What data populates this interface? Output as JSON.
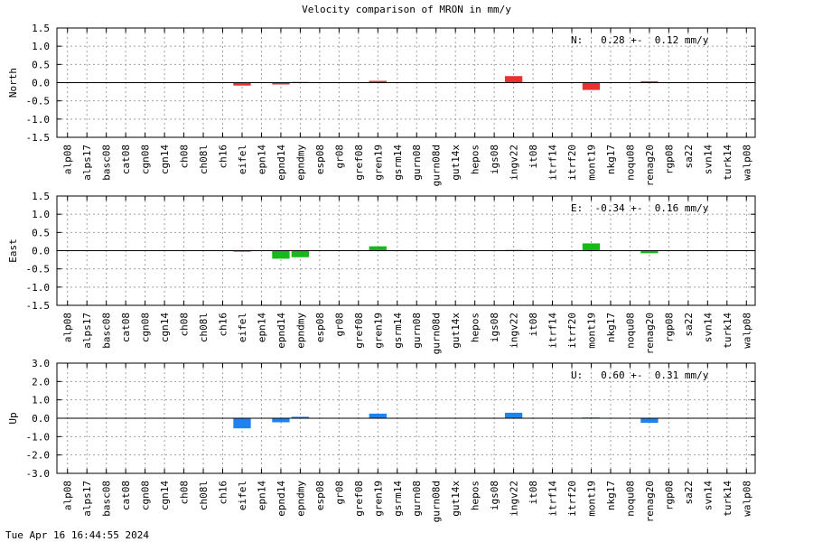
{
  "title": "Velocity comparison of MRON in mm/y",
  "footer": "Tue Apr 16 16:44:55 2024",
  "colors": {
    "north": "#e83232",
    "east": "#18b818",
    "up": "#1e82f0",
    "grid": "#a0a0a0",
    "axis": "#000000"
  },
  "chart_data": [
    {
      "type": "bar",
      "ylabel": "North",
      "ylim": [
        -1.5,
        1.5
      ],
      "yticks": [
        1.5,
        1.0,
        0.5,
        0.0,
        -0.5,
        -1.0,
        -1.5
      ],
      "ytick_labels": [
        "1.5",
        "1.0",
        "0.5",
        "0.0",
        "-0.5",
        "-1.0",
        "-1.5"
      ],
      "annotation": "N:   0.28 +-  0.12 mm/y",
      "color": "#e83232",
      "grid": true,
      "categories": [
        "alp08",
        "alps17",
        "basc08",
        "cat08",
        "cgn08",
        "cgn14",
        "ch08",
        "ch08l",
        "ch16",
        "eifel",
        "epn14",
        "epnd14",
        "epndmy",
        "esp08",
        "gr08",
        "gref08",
        "gren19",
        "gsrm14",
        "gurn08",
        "gurn08d",
        "gut14x",
        "hepos",
        "igs08",
        "ingv22",
        "it08",
        "itrf14",
        "itrf20",
        "mont19",
        "nkg17",
        "noqu08",
        "renag20",
        "rgp08",
        "sa22",
        "svn14",
        "turk14",
        "walp08"
      ],
      "values": [
        0,
        0,
        0,
        0,
        0,
        0,
        0,
        0,
        0,
        -0.08,
        0,
        -0.05,
        0.02,
        0,
        0,
        0,
        0.05,
        0,
        0,
        0,
        0,
        0,
        0,
        0.18,
        0,
        0,
        0,
        -0.2,
        0,
        0,
        0.04,
        0,
        0,
        0,
        0,
        0
      ]
    },
    {
      "type": "bar",
      "ylabel": "East",
      "ylim": [
        -1.5,
        1.5
      ],
      "yticks": [
        1.5,
        1.0,
        0.5,
        0.0,
        -0.5,
        -1.0,
        -1.5
      ],
      "ytick_labels": [
        "1.5",
        "1.0",
        "0.5",
        "0.0",
        "-0.5",
        "-1.0",
        "-1.5"
      ],
      "annotation": "E:  -0.34 +-  0.16 mm/y",
      "color": "#18b818",
      "grid": true,
      "categories": [
        "alp08",
        "alps17",
        "basc08",
        "cat08",
        "cgn08",
        "cgn14",
        "ch08",
        "ch08l",
        "ch16",
        "eifel",
        "epn14",
        "epnd14",
        "epndmy",
        "esp08",
        "gr08",
        "gref08",
        "gren19",
        "gsrm14",
        "gurn08",
        "gurn08d",
        "gut14x",
        "hepos",
        "igs08",
        "ingv22",
        "it08",
        "itrf14",
        "itrf20",
        "mont19",
        "nkg17",
        "noqu08",
        "renag20",
        "rgp08",
        "sa22",
        "svn14",
        "turk14",
        "walp08"
      ],
      "values": [
        0,
        0,
        0,
        0,
        0,
        0,
        0,
        0,
        0,
        -0.03,
        0,
        -0.22,
        -0.18,
        0,
        0,
        0,
        0.12,
        0,
        0,
        0,
        0,
        0,
        0,
        0.02,
        0,
        0,
        0,
        0.2,
        0,
        0,
        -0.07,
        0,
        0,
        0,
        0,
        0
      ]
    },
    {
      "type": "bar",
      "ylabel": "Up",
      "ylim": [
        -3.0,
        3.0
      ],
      "yticks": [
        3.0,
        2.0,
        1.0,
        0.0,
        -1.0,
        -2.0,
        -3.0
      ],
      "ytick_labels": [
        "3.0",
        "2.0",
        "1.0",
        "0.0",
        "-1.0",
        "-2.0",
        "-3.0"
      ],
      "annotation": "U:   0.60 +-  0.31 mm/y",
      "color": "#1e82f0",
      "grid": true,
      "categories": [
        "alp08",
        "alps17",
        "basc08",
        "cat08",
        "cgn08",
        "cgn14",
        "ch08",
        "ch08l",
        "ch16",
        "eifel",
        "epn14",
        "epnd14",
        "epndmy",
        "esp08",
        "gr08",
        "gref08",
        "gren19",
        "gsrm14",
        "gurn08",
        "gurn08d",
        "gut14x",
        "hepos",
        "igs08",
        "ingv22",
        "it08",
        "itrf14",
        "itrf20",
        "mont19",
        "nkg17",
        "noqu08",
        "renag20",
        "rgp08",
        "sa22",
        "svn14",
        "turk14",
        "walp08"
      ],
      "values": [
        0,
        0,
        0,
        0,
        0,
        0,
        0,
        0,
        0,
        -0.55,
        0,
        -0.22,
        0.08,
        0,
        0,
        0,
        0.25,
        0,
        0,
        0,
        0,
        0,
        0,
        0.3,
        0,
        0,
        0,
        0.04,
        0,
        0,
        -0.25,
        0,
        0,
        0,
        0,
        0
      ]
    }
  ]
}
